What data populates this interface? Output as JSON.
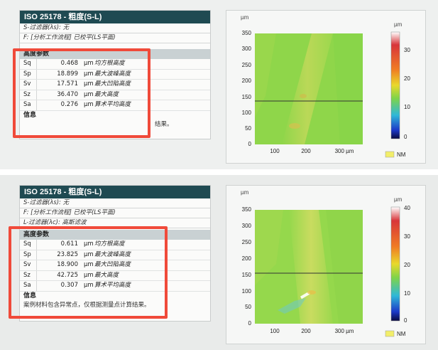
{
  "reports": [
    {
      "title": "ISO 25178 - 粗度(S-L)",
      "lines": [
        "S-过滤器(λs): 无",
        "F: [分析工作流程] 已校平(LS平面)"
      ],
      "section_title": "高度参数",
      "params": [
        {
          "sym": "Sq",
          "value": "0.468",
          "unit": "µm",
          "desc": "均方根高度"
        },
        {
          "sym": "Sp",
          "value": "18.899",
          "unit": "µm",
          "desc": "最大波峰高度"
        },
        {
          "sym": "Sv",
          "value": "17.571",
          "unit": "µm",
          "desc": "最大凹陷高度"
        },
        {
          "sym": "Sz",
          "value": "36.470",
          "unit": "µm",
          "desc": "最大高度"
        },
        {
          "sym": "Sa",
          "value": "0.276",
          "unit": "µm",
          "desc": "算术平均高度"
        }
      ],
      "info_title": "信息",
      "info_text": "结果。",
      "map": {
        "unit": "µm",
        "y_ticks": [
          "350",
          "300",
          "250",
          "200",
          "150",
          "100",
          "50",
          "0"
        ],
        "x_ticks": [
          "100",
          "200",
          "300 µm"
        ],
        "scale_ticks": [
          "30",
          "20",
          "10",
          "0"
        ],
        "nm_label": "NM",
        "colors": {
          "bg": "#8fd64a",
          "band": "#c7dc5a"
        }
      }
    },
    {
      "title": "ISO 25178 - 粗度(S-L)",
      "lines": [
        "S-过滤器(λs): 无",
        "F: [分析工作流程] 已校平(LS平面)",
        "L-过滤器(λc): 高斯滤波"
      ],
      "section_title": "高度参数",
      "params": [
        {
          "sym": "Sq",
          "value": "0.611",
          "unit": "µm",
          "desc": "均方根高度"
        },
        {
          "sym": "Sp",
          "value": "23.825",
          "unit": "µm",
          "desc": "最大波峰高度"
        },
        {
          "sym": "Sv",
          "value": "18.900",
          "unit": "µm",
          "desc": "最大凹陷高度"
        },
        {
          "sym": "Sz",
          "value": "42.725",
          "unit": "µm",
          "desc": "最大高度"
        },
        {
          "sym": "Sa",
          "value": "0.307",
          "unit": "µm",
          "desc": "算术平均高度"
        }
      ],
      "info_title": "信息",
      "info_text": "案例材料包含异常点，仅根据测量点计算结果。",
      "map": {
        "unit": "µm",
        "y_ticks": [
          "350",
          "300",
          "250",
          "200",
          "150",
          "100",
          "50",
          "0"
        ],
        "x_ticks": [
          "100",
          "200",
          "300 µm"
        ],
        "scale_ticks": [
          "40",
          "30",
          "20",
          "10",
          "0"
        ],
        "nm_label": "NM",
        "colors": {
          "bg": "#95d84c",
          "band": "#c9dc5c"
        }
      }
    }
  ]
}
